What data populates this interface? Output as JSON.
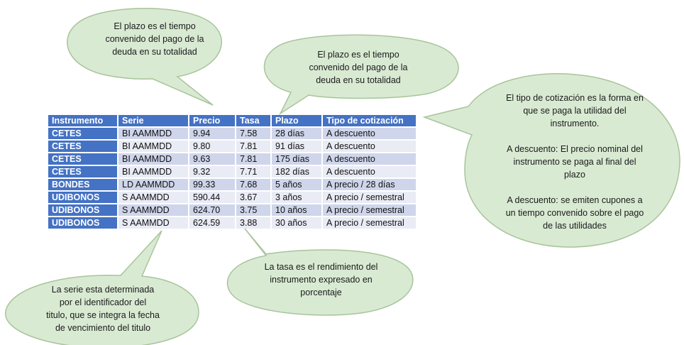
{
  "table": {
    "headers": [
      "Instrumento",
      "Serie",
      "Precio",
      "Tasa",
      "Plazo",
      "Tipo de cotización"
    ],
    "rows": [
      [
        "CETES",
        "BI AAMMDD",
        "9.94",
        "7.58",
        "28 días",
        "A descuento"
      ],
      [
        "CETES",
        "BI AAMMDD",
        "9.80",
        "7.81",
        "91 días",
        "A descuento"
      ],
      [
        "CETES",
        "BI AAMMDD",
        "9.63",
        "7.81",
        "175 días",
        "A descuento"
      ],
      [
        "CETES",
        "BI AAMMDD",
        "9.32",
        "7.71",
        "182 días",
        "A descuento"
      ],
      [
        "BONDES",
        "LD AAMMDD",
        "99.33",
        "7.68",
        "5 años",
        "A precio / 28 días"
      ],
      [
        "UDIBONOS",
        "S AAMMDD",
        "590.44",
        "3.67",
        "3 años",
        "A precio / semestral"
      ],
      [
        "UDIBONOS",
        "S AAMMDD",
        "624.70",
        "3.75",
        "10 años",
        "A precio / semestral"
      ],
      [
        "UDIBONOS",
        "S AAMMDD",
        "624.59",
        "3.88",
        "30 años",
        "A precio / semestral"
      ]
    ]
  },
  "callouts": {
    "plazo_top": "El plazo es el tiempo\nconvenido del pago de la\ndeuda en su totalidad",
    "plazo_mid": "El plazo es el tiempo\nconvenido del pago de la\ndeuda en su totalidad",
    "cotizacion": "El tipo de cotización es la forma en\nque se paga la utilidad del\ninstrumento.\n\nA descuento: El precio nominal del\ninstrumento se paga al final del\nplazo\n\nA descuento: se emiten cupones a\nun tiempo convenido sobre el pago\nde las utilidades",
    "tasa": "La tasa es el rendimiento del\ninstrumento expresado en\nporcentaje",
    "serie": "La serie esta determinada\npor el identificador del\ntitulo, que se integra la fecha\nde vencimiento del titulo"
  },
  "colors": {
    "bubble_fill": "#d9ead3",
    "bubble_stroke": "#a8c49a",
    "header_blue": "#4472c4",
    "row_dark": "#cfd5ea",
    "row_light": "#e9ebf5"
  }
}
